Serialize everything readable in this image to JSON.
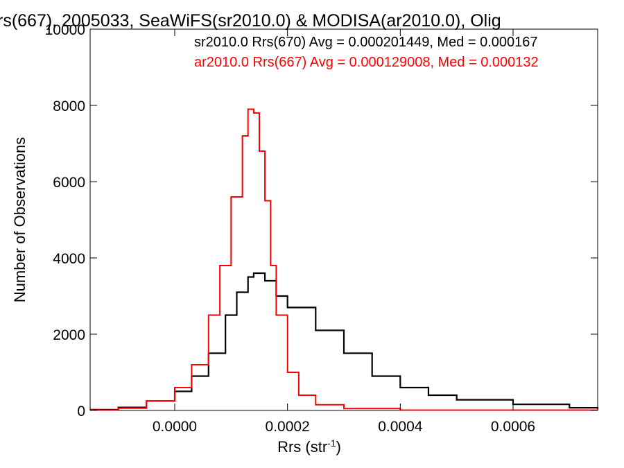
{
  "chart_data": {
    "type": "histogram",
    "title": "rs(667), 2005033, SeaWiFS(sr2010.0) & MODISA(ar2010.0), Olig",
    "xlabel": "Rrs (str",
    "xlabel_sup": "-1",
    "xlabel_end": ")",
    "ylabel": "Number of Observations",
    "xlim": [
      -0.00015,
      0.00075
    ],
    "ylim": [
      0,
      10000
    ],
    "x_ticks": [
      0.0,
      0.0002,
      0.0004,
      0.0006
    ],
    "x_tick_labels": [
      "0.0000",
      "0.0002",
      "0.0004",
      "0.0006"
    ],
    "y_ticks": [
      0,
      2000,
      4000,
      6000,
      8000,
      10000
    ],
    "y_tick_labels": [
      "0",
      "2000",
      "4000",
      "6000",
      "8000",
      "10000"
    ],
    "grid": false,
    "legend_position": "top-right",
    "series": [
      {
        "legend": "sr2010.0 Rrs(670) Avg = 0.000201449, Med = 0.000167",
        "color": "#000000",
        "points": [
          [
            -0.00015,
            20
          ],
          [
            -0.0001,
            80
          ],
          [
            -5e-05,
            250
          ],
          [
            0.0,
            500
          ],
          [
            3e-05,
            900
          ],
          [
            6e-05,
            1500
          ],
          [
            9e-05,
            2500
          ],
          [
            0.00011,
            3100
          ],
          [
            0.00013,
            3500
          ],
          [
            0.00014,
            3600
          ],
          [
            0.00016,
            3400
          ],
          [
            0.00018,
            3000
          ],
          [
            0.0002,
            2700
          ],
          [
            0.00025,
            2100
          ],
          [
            0.0003,
            1500
          ],
          [
            0.00035,
            900
          ],
          [
            0.0004,
            600
          ],
          [
            0.00045,
            400
          ],
          [
            0.0005,
            280
          ],
          [
            0.0006,
            160
          ],
          [
            0.0007,
            70
          ],
          [
            0.00075,
            40
          ]
        ]
      },
      {
        "legend": "ar2010.0 Rrs(667) Avg = 0.000129008, Med = 0.000132",
        "color": "#ff0000",
        "points": [
          [
            -0.00015,
            10
          ],
          [
            -0.0001,
            60
          ],
          [
            -5e-05,
            250
          ],
          [
            0.0,
            600
          ],
          [
            3e-05,
            1200
          ],
          [
            6e-05,
            2500
          ],
          [
            8e-05,
            3800
          ],
          [
            0.0001,
            5600
          ],
          [
            0.00012,
            7200
          ],
          [
            0.00013,
            7900
          ],
          [
            0.00014,
            7800
          ],
          [
            0.00015,
            6800
          ],
          [
            0.00016,
            5500
          ],
          [
            0.00017,
            3800
          ],
          [
            0.00018,
            2500
          ],
          [
            0.0002,
            1000
          ],
          [
            0.00022,
            400
          ],
          [
            0.00025,
            150
          ],
          [
            0.0003,
            50
          ],
          [
            0.0004,
            10
          ],
          [
            0.00075,
            0
          ]
        ]
      }
    ]
  }
}
